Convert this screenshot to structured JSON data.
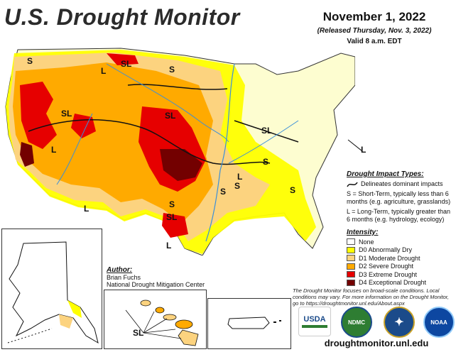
{
  "header": {
    "title": "U.S. Drought Monitor",
    "date": "November 1, 2022",
    "released": "(Released Thursday, Nov. 3, 2022)",
    "valid": "Valid 8 a.m. EDT"
  },
  "map_labels": {
    "s": "S",
    "l": "L",
    "sl": "SL"
  },
  "impact": {
    "heading": "Drought Impact Types:",
    "line_desc": "Delineates dominant impacts",
    "short_term": "S = Short-Term, typically less than 6 months (e.g. agriculture, grasslands)",
    "long_term": "L = Long-Term, typically greater than 6 months (e.g. hydrology, ecology)"
  },
  "intensity": {
    "heading": "Intensity:",
    "levels": [
      {
        "label": "None",
        "color": "#ffffff"
      },
      {
        "label": "D0 Abnormally Dry",
        "color": "#ffff00"
      },
      {
        "label": "D1 Moderate Drought",
        "color": "#fcd37f"
      },
      {
        "label": "D2 Severe Drought",
        "color": "#ffaa00"
      },
      {
        "label": "D3 Extreme Drought",
        "color": "#e60000"
      },
      {
        "label": "D4 Exceptional Drought",
        "color": "#730000"
      }
    ]
  },
  "author": {
    "heading": "Author:",
    "name": "Brian Fuchs",
    "org": "National Drought Mitigation Center"
  },
  "hawaii_label": "SL",
  "disclaimer": "The Drought Monitor focuses on broad-scale conditions. Local conditions may vary. For more information on the Drought Monitor, go to https://droughtmonitor.unl.edu/About.aspx",
  "logos": {
    "usda": "USDA",
    "ndmc": "NDMC",
    "noaa": "NOAA"
  },
  "url": "droughtmonitor.unl.edu"
}
